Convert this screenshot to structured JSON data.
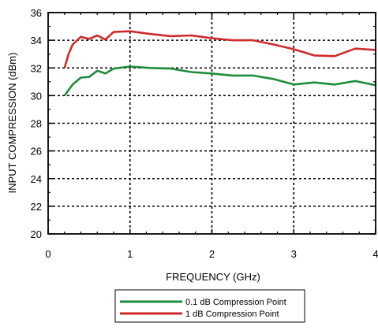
{
  "chart_data": {
    "type": "line",
    "title": "",
    "xlabel": "FREQUENCY (GHz)",
    "ylabel": "INPUT COMPRESSION (dBm)",
    "xlim": [
      0,
      4
    ],
    "ylim": [
      20,
      36
    ],
    "x_ticks": [
      0,
      1,
      2,
      3,
      4
    ],
    "x_tick_labels": [
      "0",
      "1",
      "2",
      "3",
      "4"
    ],
    "y_ticks": [
      20,
      22,
      24,
      26,
      28,
      30,
      32,
      34,
      36
    ],
    "y_tick_labels": [
      "20",
      "22",
      "24",
      "26",
      "28",
      "30",
      "32",
      "34",
      "36"
    ],
    "grid": true,
    "legend_position": "bottom-center",
    "series": [
      {
        "name": "0.1 dB Compression Point",
        "color": "#1e8c3a",
        "x": [
          0.2,
          0.25,
          0.3,
          0.4,
          0.5,
          0.6,
          0.7,
          0.8,
          1.0,
          1.25,
          1.5,
          1.75,
          2.0,
          2.25,
          2.5,
          2.75,
          3.0,
          3.25,
          3.5,
          3.75,
          4.0
        ],
        "y": [
          30.0,
          30.4,
          30.8,
          31.3,
          31.35,
          31.8,
          31.6,
          31.95,
          32.1,
          32.0,
          31.95,
          31.7,
          31.6,
          31.45,
          31.45,
          31.2,
          30.8,
          30.95,
          30.8,
          31.05,
          30.75
        ]
      },
      {
        "name": "1 dB Compression Point",
        "color": "#d02a2a",
        "x": [
          0.2,
          0.25,
          0.3,
          0.4,
          0.5,
          0.6,
          0.7,
          0.8,
          1.0,
          1.25,
          1.5,
          1.75,
          2.0,
          2.25,
          2.5,
          2.75,
          3.0,
          3.25,
          3.5,
          3.75,
          4.0
        ],
        "y": [
          32.0,
          33.0,
          33.7,
          34.25,
          34.1,
          34.35,
          34.05,
          34.6,
          34.65,
          34.45,
          34.3,
          34.35,
          34.15,
          34.0,
          34.0,
          33.7,
          33.35,
          32.9,
          32.85,
          33.4,
          33.3
        ]
      }
    ]
  }
}
